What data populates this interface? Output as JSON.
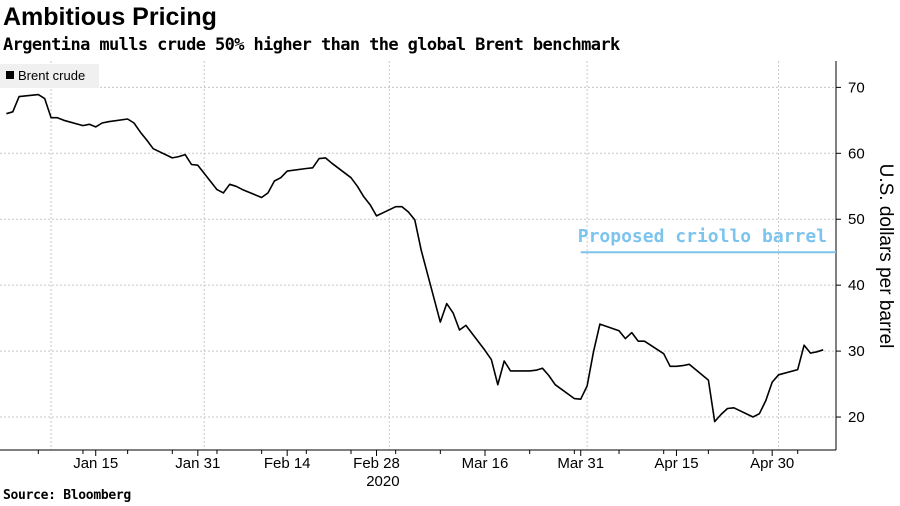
{
  "header": {
    "title": "Ambitious Pricing",
    "subtitle": "Argentina mulls crude 50% higher than the global Brent benchmark"
  },
  "footer": {
    "source": "Source: Bloomberg"
  },
  "chart_data": {
    "type": "line",
    "title": "Ambitious Pricing",
    "subtitle": "Argentina mulls crude 50% higher than the global Brent benchmark",
    "ylabel": "U.S. dollars per barrel",
    "xlabel": "2020",
    "ylim": [
      15,
      74
    ],
    "yticks": [
      20,
      30,
      40,
      50,
      60,
      70
    ],
    "xtick_labels": [
      "Jan 15",
      "Jan 31",
      "Feb 14",
      "Feb 28",
      "Mar 16",
      "Mar 31",
      "Apr 15",
      "Apr 30"
    ],
    "xtick_dates": [
      "2020-01-15",
      "2020-01-31",
      "2020-02-14",
      "2020-02-28",
      "2020-03-16",
      "2020-03-31",
      "2020-04-15",
      "2020-04-30"
    ],
    "xlim": [
      "2019-12-31",
      "2020-05-10"
    ],
    "grid": true,
    "legend": {
      "position": "top-left",
      "entries": [
        "Brent crude"
      ]
    },
    "colors": {
      "series": "#000000",
      "reference": "#7cc4ee",
      "grid": "#c8c8c8"
    },
    "series": [
      {
        "name": "Brent crude",
        "points": [
          [
            "2020-01-01",
            66.0
          ],
          [
            "2020-01-02",
            66.3
          ],
          [
            "2020-01-03",
            68.6
          ],
          [
            "2020-01-06",
            68.9
          ],
          [
            "2020-01-07",
            68.3
          ],
          [
            "2020-01-08",
            65.4
          ],
          [
            "2020-01-09",
            65.4
          ],
          [
            "2020-01-10",
            65.0
          ],
          [
            "2020-01-13",
            64.2
          ],
          [
            "2020-01-14",
            64.4
          ],
          [
            "2020-01-15",
            64.0
          ],
          [
            "2020-01-16",
            64.6
          ],
          [
            "2020-01-17",
            64.8
          ],
          [
            "2020-01-20",
            65.2
          ],
          [
            "2020-01-21",
            64.6
          ],
          [
            "2020-01-22",
            63.2
          ],
          [
            "2020-01-23",
            62.0
          ],
          [
            "2020-01-24",
            60.7
          ],
          [
            "2020-01-27",
            59.3
          ],
          [
            "2020-01-28",
            59.5
          ],
          [
            "2020-01-29",
            59.8
          ],
          [
            "2020-01-30",
            58.3
          ],
          [
            "2020-01-31",
            58.2
          ],
          [
            "2020-02-03",
            54.5
          ],
          [
            "2020-02-04",
            54.0
          ],
          [
            "2020-02-05",
            55.3
          ],
          [
            "2020-02-06",
            55.0
          ],
          [
            "2020-02-07",
            54.5
          ],
          [
            "2020-02-10",
            53.3
          ],
          [
            "2020-02-11",
            54.0
          ],
          [
            "2020-02-12",
            55.8
          ],
          [
            "2020-02-13",
            56.3
          ],
          [
            "2020-02-14",
            57.3
          ],
          [
            "2020-02-17",
            57.7
          ],
          [
            "2020-02-18",
            57.8
          ],
          [
            "2020-02-19",
            59.2
          ],
          [
            "2020-02-20",
            59.3
          ],
          [
            "2020-02-21",
            58.5
          ],
          [
            "2020-02-24",
            56.3
          ],
          [
            "2020-02-25",
            55.0
          ],
          [
            "2020-02-26",
            53.4
          ],
          [
            "2020-02-27",
            52.2
          ],
          [
            "2020-02-28",
            50.5
          ],
          [
            "2020-03-02",
            51.9
          ],
          [
            "2020-03-03",
            51.9
          ],
          [
            "2020-03-04",
            51.1
          ],
          [
            "2020-03-05",
            49.9
          ],
          [
            "2020-03-06",
            45.3
          ],
          [
            "2020-03-09",
            34.4
          ],
          [
            "2020-03-10",
            37.2
          ],
          [
            "2020-03-11",
            35.8
          ],
          [
            "2020-03-12",
            33.2
          ],
          [
            "2020-03-13",
            33.9
          ],
          [
            "2020-03-16",
            30.1
          ],
          [
            "2020-03-17",
            28.7
          ],
          [
            "2020-03-18",
            24.9
          ],
          [
            "2020-03-19",
            28.5
          ],
          [
            "2020-03-20",
            27.0
          ],
          [
            "2020-03-23",
            27.0
          ],
          [
            "2020-03-24",
            27.1
          ],
          [
            "2020-03-25",
            27.4
          ],
          [
            "2020-03-26",
            26.3
          ],
          [
            "2020-03-27",
            24.9
          ],
          [
            "2020-03-30",
            22.8
          ],
          [
            "2020-03-31",
            22.7
          ],
          [
            "2020-04-01",
            24.7
          ],
          [
            "2020-04-02",
            29.9
          ],
          [
            "2020-04-03",
            34.1
          ],
          [
            "2020-04-06",
            33.1
          ],
          [
            "2020-04-07",
            31.9
          ],
          [
            "2020-04-08",
            32.8
          ],
          [
            "2020-04-09",
            31.5
          ],
          [
            "2020-04-10",
            31.5
          ],
          [
            "2020-04-13",
            29.6
          ],
          [
            "2020-04-14",
            27.7
          ],
          [
            "2020-04-15",
            27.7
          ],
          [
            "2020-04-16",
            27.8
          ],
          [
            "2020-04-17",
            28.0
          ],
          [
            "2020-04-20",
            25.6
          ],
          [
            "2020-04-21",
            19.3
          ],
          [
            "2020-04-22",
            20.4
          ],
          [
            "2020-04-23",
            21.3
          ],
          [
            "2020-04-24",
            21.4
          ],
          [
            "2020-04-27",
            20.0
          ],
          [
            "2020-04-28",
            20.5
          ],
          [
            "2020-04-29",
            22.5
          ],
          [
            "2020-04-30",
            25.3
          ],
          [
            "2020-05-01",
            26.4
          ],
          [
            "2020-05-04",
            27.2
          ],
          [
            "2020-05-05",
            30.9
          ],
          [
            "2020-05-06",
            29.7
          ],
          [
            "2020-05-07",
            29.9
          ],
          [
            "2020-05-08",
            30.2
          ]
        ]
      }
    ],
    "reference_line": {
      "label": "Proposed criollo barrel",
      "value": 45,
      "start": "2020-03-31",
      "end": "2020-05-10"
    }
  }
}
